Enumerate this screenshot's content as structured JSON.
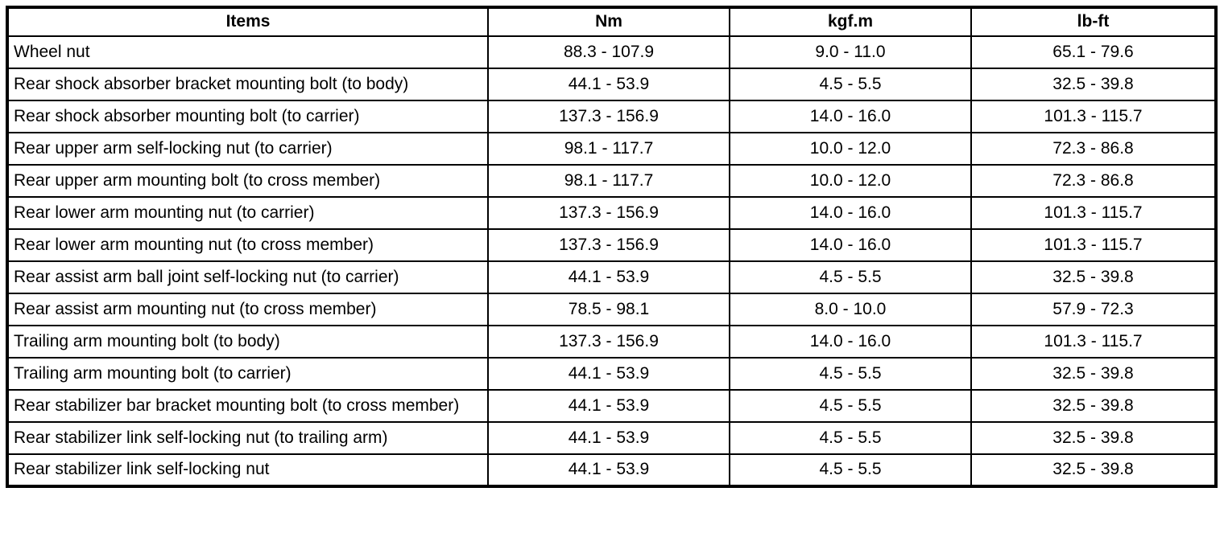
{
  "colors": {
    "background": "#ffffff",
    "border": "#000000",
    "text": "#000000"
  },
  "table": {
    "headers": [
      "Items",
      "Nm",
      "kgf.m",
      "lb-ft"
    ],
    "rows": [
      [
        "Wheel nut",
        "88.3 - 107.9",
        "9.0 - 11.0",
        "65.1 - 79.6"
      ],
      [
        "Rear shock absorber bracket mounting bolt (to body)",
        "44.1 - 53.9",
        "4.5 - 5.5",
        "32.5 - 39.8"
      ],
      [
        "Rear shock absorber mounting bolt (to carrier)",
        "137.3 - 156.9",
        "14.0 - 16.0",
        "101.3 - 115.7"
      ],
      [
        "Rear upper arm self-locking nut (to carrier)",
        "98.1 - 117.7",
        "10.0 - 12.0",
        "72.3 - 86.8"
      ],
      [
        "Rear upper arm mounting bolt (to cross member)",
        "98.1 - 117.7",
        "10.0 - 12.0",
        "72.3 - 86.8"
      ],
      [
        "Rear lower arm mounting nut (to carrier)",
        "137.3 - 156.9",
        "14.0 - 16.0",
        "101.3 - 115.7"
      ],
      [
        "Rear lower arm mounting nut (to cross member)",
        "137.3 - 156.9",
        "14.0 - 16.0",
        "101.3 - 115.7"
      ],
      [
        "Rear assist arm ball joint self-locking nut (to carrier)",
        "44.1 - 53.9",
        "4.5 - 5.5",
        "32.5 - 39.8"
      ],
      [
        "Rear assist arm mounting nut (to cross member)",
        "78.5 - 98.1",
        "8.0 - 10.0",
        "57.9 - 72.3"
      ],
      [
        "Trailing arm mounting bolt (to body)",
        "137.3 - 156.9",
        "14.0 - 16.0",
        "101.3 - 115.7"
      ],
      [
        "Trailing arm mounting bolt (to carrier)",
        "44.1 - 53.9",
        "4.5 - 5.5",
        "32.5 - 39.8"
      ],
      [
        "Rear stabilizer bar bracket mounting bolt (to cross member)",
        "44.1 - 53.9",
        "4.5 - 5.5",
        "32.5 - 39.8"
      ],
      [
        "Rear stabilizer link self-locking nut (to trailing arm)",
        "44.1 - 53.9",
        "4.5 - 5.5",
        "32.5 - 39.8"
      ],
      [
        "Rear stabilizer link self-locking nut",
        "44.1 - 53.9",
        "4.5 - 5.5",
        "32.5 - 39.8"
      ]
    ]
  }
}
